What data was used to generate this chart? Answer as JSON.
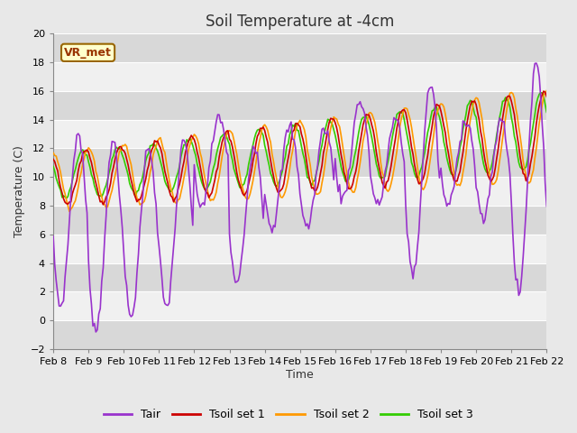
{
  "title": "Soil Temperature at -4cm",
  "xlabel": "Time",
  "ylabel": "Temperature (C)",
  "ylim": [
    -2,
    20
  ],
  "yticks": [
    -2,
    0,
    2,
    4,
    6,
    8,
    10,
    12,
    14,
    16,
    18,
    20
  ],
  "xlim_start": 0,
  "xlim_end": 336,
  "xtick_positions": [
    0,
    24,
    48,
    72,
    96,
    120,
    144,
    168,
    192,
    216,
    240,
    264,
    288,
    312,
    336
  ],
  "xtick_labels": [
    "Feb 8",
    "Feb 9",
    "Feb 10",
    "Feb 11",
    "Feb 12",
    "Feb 13",
    "Feb 14",
    "Feb 15",
    "Feb 16",
    "Feb 17",
    "Feb 18",
    "Feb 19",
    "Feb 20",
    "Feb 21",
    "Feb 22"
  ],
  "color_tair": "#9933cc",
  "color_tsoil1": "#cc0000",
  "color_tsoil2": "#ff9900",
  "color_tsoil3": "#33cc00",
  "line_width": 1.2,
  "bg_color": "#e8e8e8",
  "band_dark": "#d8d8d8",
  "band_light": "#f0f0f0",
  "annotation_text": "VR_met",
  "annotation_bg": "#ffffcc",
  "annotation_border": "#996600",
  "legend_labels": [
    "Tair",
    "Tsoil set 1",
    "Tsoil set 2",
    "Tsoil set 3"
  ],
  "grid_color": "#ffffff",
  "title_fontsize": 12,
  "axis_fontsize": 9,
  "tick_fontsize": 8
}
